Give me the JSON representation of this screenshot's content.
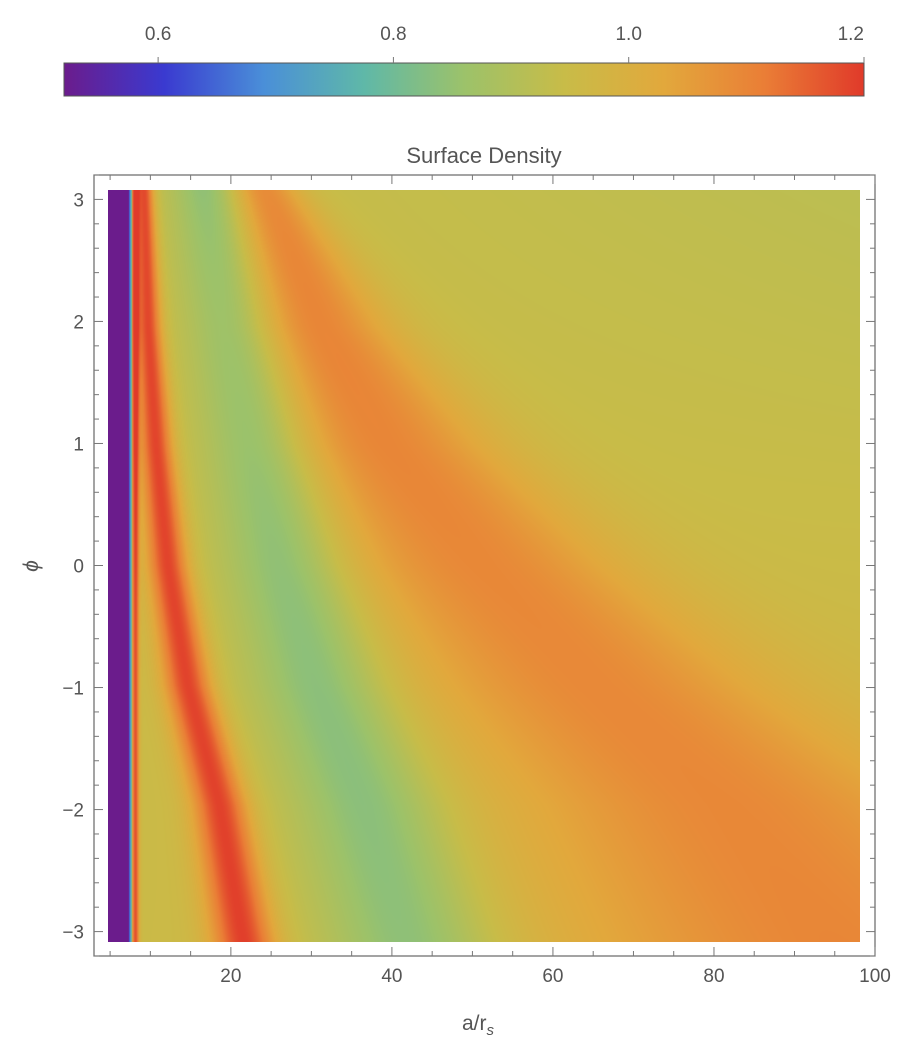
{
  "chart_data": {
    "type": "heatmap",
    "title": "Surface Density",
    "xlabel": "a/r",
    "xlabel_sub": "s",
    "ylabel": "ϕ",
    "xlim": [
      3,
      100
    ],
    "ylim": [
      -3.2,
      3.2
    ],
    "data_x_range": [
      5,
      99.5
    ],
    "data_y_range": [
      -3.14159,
      3.14159
    ],
    "x_ticks": [
      {
        "value": 20,
        "label": "20"
      },
      {
        "value": 40,
        "label": "40"
      },
      {
        "value": 60,
        "label": "60"
      },
      {
        "value": 80,
        "label": "80"
      },
      {
        "value": 100,
        "label": "100"
      }
    ],
    "y_ticks": [
      {
        "value": 3,
        "label": "3"
      },
      {
        "value": 2,
        "label": "2"
      },
      {
        "value": 1,
        "label": "1"
      },
      {
        "value": 0,
        "label": "0"
      },
      {
        "value": -1,
        "label": "−1"
      },
      {
        "value": -2,
        "label": "−2"
      },
      {
        "value": -3,
        "label": "−3"
      }
    ],
    "colorbar": {
      "range": [
        0.52,
        1.2
      ],
      "ticks": [
        {
          "value": 0.6,
          "label": "0.6"
        },
        {
          "value": 0.8,
          "label": "0.8"
        },
        {
          "value": 1.0,
          "label": "1.0"
        },
        {
          "value": 1.2,
          "label": "1.2"
        }
      ],
      "colors": [
        "#6b1c8c",
        "#3a3ad0",
        "#4a8fd8",
        "#5fb8a8",
        "#9cc26a",
        "#c8bc48",
        "#e2a83c",
        "#ea7e36",
        "#e03a2a"
      ]
    },
    "grid": false,
    "legend": "colorbar-top"
  }
}
